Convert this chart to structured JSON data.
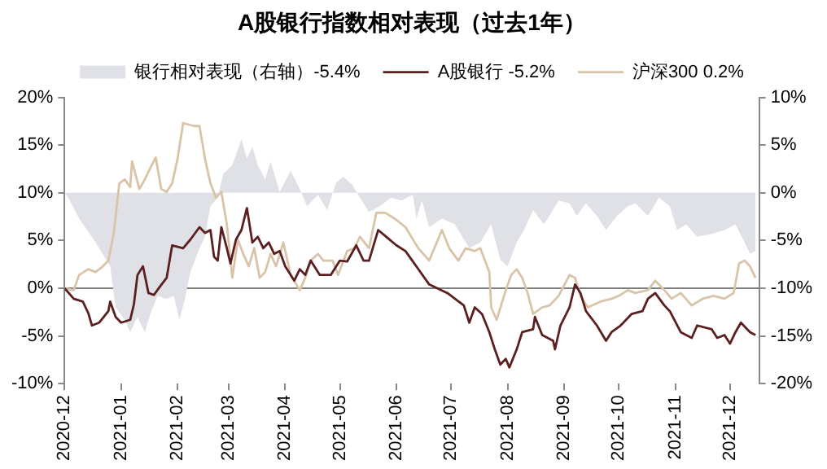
{
  "chart_data": {
    "type": "line",
    "title": "A股银行指数相对表现（过去1年）",
    "xlim": [
      "2020-12-01",
      "2021-12-17"
    ],
    "xticks": [
      "2020-12",
      "2021-01",
      "2021-02",
      "2021-03",
      "2021-04",
      "2021-05",
      "2021-06",
      "2021-07",
      "2021-08",
      "2021-09",
      "2021-10",
      "2021-11",
      "2021-12"
    ],
    "ylim": [
      -10,
      20
    ],
    "yticks": [
      {
        "value": -10,
        "label": "-10%"
      },
      {
        "value": -5,
        "label": "-5%"
      },
      {
        "value": 0,
        "label": "0%"
      },
      {
        "value": 5,
        "label": "5%"
      },
      {
        "value": 10,
        "label": "10%"
      },
      {
        "value": 15,
        "label": "15%"
      },
      {
        "value": 20,
        "label": "20%"
      }
    ],
    "y2lim": [
      -20,
      10
    ],
    "y2ticks": [
      {
        "value": -20,
        "label": "-20%"
      },
      {
        "value": -15,
        "label": "-15%"
      },
      {
        "value": -10,
        "label": "-10%"
      },
      {
        "value": -5,
        "label": "-5%"
      },
      {
        "value": 0,
        "label": "0%"
      },
      {
        "value": 5,
        "label": "5%"
      },
      {
        "value": 10,
        "label": "10%"
      }
    ],
    "grid": false,
    "legend": "top",
    "marker": "none",
    "ref_lines": [
      {
        "axis": "y",
        "value": 0,
        "color": "#7f7f7f"
      }
    ],
    "series": [
      {
        "name": "银行相对表现（右轴）-5.4%",
        "type": "area",
        "axis": "y2",
        "color": "#dfe1e6",
        "x": [
          "2020-12-01",
          "2020-12-03",
          "2020-12-09",
          "2020-12-18",
          "2020-12-26",
          "2020-12-29",
          "2021-01-03",
          "2021-01-06",
          "2021-01-10",
          "2021-01-14",
          "2021-01-17",
          "2021-01-21",
          "2021-01-26",
          "2021-01-30",
          "2021-02-02",
          "2021-02-05",
          "2021-02-08",
          "2021-02-13",
          "2021-02-16",
          "2021-02-19",
          "2021-02-23",
          "2021-02-26",
          "2021-03-03",
          "2021-03-08",
          "2021-03-11",
          "2021-03-14",
          "2021-03-17",
          "2021-03-21",
          "2021-03-24",
          "2021-03-29",
          "2021-04-04",
          "2021-04-09",
          "2021-04-13",
          "2021-04-19",
          "2021-04-24",
          "2021-04-29",
          "2021-05-03",
          "2021-05-08",
          "2021-05-12",
          "2021-05-17",
          "2021-05-23",
          "2021-05-29",
          "2021-06-04",
          "2021-06-10",
          "2021-06-12",
          "2021-06-15",
          "2021-06-19",
          "2021-06-26",
          "2021-07-03",
          "2021-07-11",
          "2021-07-17",
          "2021-07-23",
          "2021-07-28",
          "2021-08-01",
          "2021-08-06",
          "2021-08-10",
          "2021-08-15",
          "2021-08-21",
          "2021-08-29",
          "2021-09-04",
          "2021-09-08",
          "2021-09-13",
          "2021-09-19",
          "2021-09-24",
          "2021-09-30",
          "2021-10-06",
          "2021-10-10",
          "2021-10-17",
          "2021-10-23",
          "2021-10-29",
          "2021-11-02",
          "2021-11-07",
          "2021-11-13",
          "2021-11-21",
          "2021-11-28",
          "2021-12-04",
          "2021-12-09",
          "2021-12-12",
          "2021-12-15"
        ],
        "values": [
          0,
          -0.5,
          -2.7,
          -5.2,
          -7.7,
          -12,
          -13.3,
          -14.6,
          -13,
          -14.6,
          -12.7,
          -10.8,
          -11.1,
          -10.8,
          -13.3,
          -11.1,
          -8.3,
          -5.8,
          -4.6,
          -1.4,
          -0.5,
          2,
          2.9,
          5.6,
          3.6,
          4.8,
          2.9,
          1.4,
          3.3,
          0.1,
          2.3,
          0.4,
          -1.4,
          -0.2,
          -1.8,
          1.1,
          1.7,
          0.8,
          -0.5,
          -2,
          -1.4,
          -0.5,
          -0.8,
          -0.2,
          -2.7,
          -0.8,
          -3.6,
          -2.7,
          -3.3,
          -5.8,
          -5.2,
          -3.3,
          -7,
          -7.7,
          -5.2,
          -3.9,
          -1.8,
          -3.3,
          -0.8,
          -1.1,
          -2.4,
          -1.1,
          -2.4,
          -3.9,
          -2.4,
          -1.4,
          -1.1,
          -2.4,
          -0.5,
          -1.4,
          -3.9,
          -3.3,
          -4.6,
          -4.3,
          -3.9,
          -3.3,
          -5.2,
          -6.4,
          -6.1
        ]
      },
      {
        "name": "A股银行 -5.2%",
        "color": "#5b1f1f",
        "x": [
          "2020-12-01",
          "2020-12-06",
          "2020-12-11",
          "2020-12-14",
          "2020-12-16",
          "2020-12-20",
          "2020-12-25",
          "2020-12-26",
          "2020-12-29",
          "2021-01-01",
          "2021-01-06",
          "2021-01-08",
          "2021-01-10",
          "2021-01-13",
          "2021-01-16",
          "2021-01-19",
          "2021-01-22",
          "2021-01-26",
          "2021-01-29",
          "2021-02-04",
          "2021-02-08",
          "2021-02-13",
          "2021-02-16",
          "2021-02-19",
          "2021-02-21",
          "2021-02-23",
          "2021-02-25",
          "2021-02-28",
          "2021-03-02",
          "2021-03-05",
          "2021-03-08",
          "2021-03-11",
          "2021-03-14",
          "2021-03-17",
          "2021-03-20",
          "2021-03-23",
          "2021-03-26",
          "2021-03-29",
          "2021-04-01",
          "2021-04-06",
          "2021-04-09",
          "2021-04-12",
          "2021-04-15",
          "2021-04-20",
          "2021-04-26",
          "2021-05-01",
          "2021-05-05",
          "2021-05-10",
          "2021-05-14",
          "2021-05-17",
          "2021-05-22",
          "2021-05-27",
          "2021-06-01",
          "2021-06-06",
          "2021-06-19",
          "2021-06-29",
          "2021-07-08",
          "2021-07-11",
          "2021-07-14",
          "2021-07-18",
          "2021-07-22",
          "2021-07-25",
          "2021-07-28",
          "2021-07-31",
          "2021-08-02",
          "2021-08-06",
          "2021-08-09",
          "2021-08-15",
          "2021-08-16",
          "2021-08-20",
          "2021-08-26",
          "2021-08-27",
          "2021-08-30",
          "2021-09-04",
          "2021-09-07",
          "2021-09-10",
          "2021-09-13",
          "2021-09-19",
          "2021-09-24",
          "2021-09-27",
          "2021-10-02",
          "2021-10-08",
          "2021-10-14",
          "2021-10-17",
          "2021-10-21",
          "2021-10-26",
          "2021-10-29",
          "2021-11-04",
          "2021-11-10",
          "2021-11-13",
          "2021-11-21",
          "2021-11-24",
          "2021-11-28",
          "2021-12-01",
          "2021-12-04",
          "2021-12-07",
          "2021-12-12",
          "2021-12-15"
        ],
        "values": [
          0,
          -1.1,
          -1.4,
          -2.6,
          -3.9,
          -3.6,
          -2.4,
          -1.4,
          -3,
          -3.6,
          -3.3,
          -1.7,
          1.4,
          2.3,
          -0.5,
          -0.7,
          0.1,
          1.1,
          4.5,
          4.2,
          5.1,
          6.4,
          5.8,
          6.1,
          3.3,
          2.9,
          6.4,
          4.2,
          2.6,
          5.1,
          6.1,
          8.4,
          4.8,
          5.4,
          4.2,
          4.8,
          3.6,
          3.9,
          2.3,
          0.8,
          2,
          1.4,
          2.9,
          1.4,
          1.4,
          2.9,
          2.8,
          4.5,
          2.9,
          2.9,
          6.1,
          5.3,
          4.5,
          3.9,
          0.4,
          -0.5,
          -1.8,
          -3.6,
          -2,
          -2.7,
          -4.6,
          -6.4,
          -8,
          -7.4,
          -8.3,
          -6.4,
          -4.6,
          -4.3,
          -3,
          -4.9,
          -5.5,
          -6.4,
          -3.9,
          -2,
          0.4,
          -0.5,
          -2.4,
          -3.9,
          -5.5,
          -4.6,
          -3.9,
          -2.7,
          -2.4,
          -1.1,
          -0.5,
          -1.8,
          -2.4,
          -4.6,
          -5.2,
          -3.9,
          -4.3,
          -5.2,
          -4.9,
          -5.8,
          -4.6,
          -3.6,
          -4.6,
          -4.9
        ]
      },
      {
        "name": "沪深300 0.2%",
        "color": "#d9c4a9",
        "x": [
          "2020-12-01",
          "2020-12-06",
          "2020-12-09",
          "2020-12-14",
          "2020-12-18",
          "2020-12-22",
          "2020-12-25",
          "2020-12-28",
          "2020-12-31",
          "2021-01-03",
          "2021-01-06",
          "2021-01-07",
          "2021-01-11",
          "2021-01-14",
          "2021-01-17",
          "2021-01-20",
          "2021-01-23",
          "2021-01-26",
          "2021-01-29",
          "2021-02-01",
          "2021-02-04",
          "2021-02-10",
          "2021-02-13",
          "2021-02-16",
          "2021-02-19",
          "2021-02-22",
          "2021-02-25",
          "2021-02-28",
          "2021-03-03",
          "2021-03-06",
          "2021-03-09",
          "2021-03-12",
          "2021-03-15",
          "2021-03-18",
          "2021-03-21",
          "2021-03-24",
          "2021-03-27",
          "2021-03-31",
          "2021-04-04",
          "2021-04-09",
          "2021-04-12",
          "2021-04-15",
          "2021-04-19",
          "2021-04-22",
          "2021-04-27",
          "2021-04-30",
          "2021-05-05",
          "2021-05-09",
          "2021-05-12",
          "2021-05-17",
          "2021-05-21",
          "2021-05-26",
          "2021-05-31",
          "2021-06-06",
          "2021-06-13",
          "2021-06-19",
          "2021-06-26",
          "2021-06-30",
          "2021-07-05",
          "2021-07-09",
          "2021-07-14",
          "2021-07-17",
          "2021-07-22",
          "2021-07-23",
          "2021-07-26",
          "2021-07-31",
          "2021-08-03",
          "2021-08-06",
          "2021-08-09",
          "2021-08-12",
          "2021-08-15",
          "2021-08-20",
          "2021-08-24",
          "2021-08-29",
          "2021-09-04",
          "2021-09-07",
          "2021-09-10",
          "2021-09-14",
          "2021-09-21",
          "2021-09-27",
          "2021-10-01",
          "2021-10-06",
          "2021-10-10",
          "2021-10-17",
          "2021-10-21",
          "2021-10-26",
          "2021-10-30",
          "2021-11-04",
          "2021-11-10",
          "2021-11-16",
          "2021-11-22",
          "2021-11-28",
          "2021-12-03",
          "2021-12-06",
          "2021-12-09",
          "2021-12-12",
          "2021-12-15"
        ],
        "values": [
          0,
          -0.2,
          1.4,
          2,
          1.7,
          2.3,
          2.9,
          5.8,
          11,
          11.4,
          10.6,
          13.3,
          10.4,
          11.4,
          12.6,
          13.7,
          10.4,
          10.1,
          11,
          13.6,
          17.3,
          17,
          17,
          13.6,
          11,
          9.5,
          10.1,
          6.7,
          1.1,
          5.1,
          3.6,
          2.3,
          4.2,
          1.1,
          1.7,
          3.6,
          2.3,
          4.8,
          1.4,
          -0.2,
          1.1,
          2.9,
          3.6,
          2.9,
          2.9,
          1.4,
          3.9,
          4.2,
          5.4,
          4.2,
          7.9,
          7.9,
          7.3,
          6.4,
          4.2,
          2.9,
          6.1,
          4.2,
          2.9,
          4.2,
          3.9,
          4.2,
          1.7,
          -2,
          -3.3,
          -0.2,
          1.4,
          2,
          1.1,
          -0.5,
          -2.7,
          -2,
          -1.8,
          -0.8,
          1.4,
          1.1,
          -0.8,
          -2,
          -1.4,
          -1.1,
          -0.8,
          -0.2,
          -0.5,
          -0.2,
          0.8,
          -0.2,
          -1.1,
          -0.5,
          -1.8,
          -1.1,
          -0.8,
          -1.1,
          -0.5,
          2.6,
          2.9,
          2.3,
          1.1
        ]
      }
    ]
  }
}
